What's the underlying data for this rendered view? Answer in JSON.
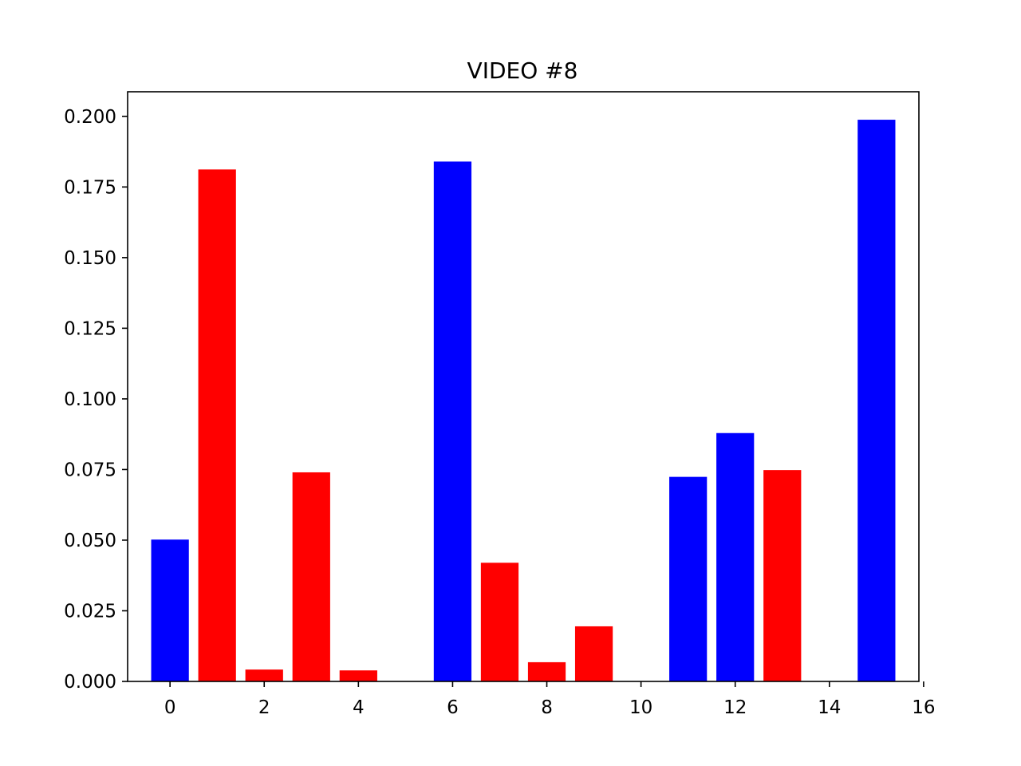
{
  "chart_data": {
    "type": "bar",
    "title": "VIDEO #8",
    "xlabel": "",
    "ylabel": "",
    "xlim": [
      -0.9,
      15.9
    ],
    "ylim": [
      0,
      0.2087
    ],
    "x_ticks": [
      0,
      2,
      4,
      6,
      8,
      10,
      12,
      14,
      16
    ],
    "x_tick_labels": [
      "0",
      "2",
      "4",
      "6",
      "8",
      "10",
      "12",
      "14",
      "16"
    ],
    "y_ticks": [
      0,
      0.025,
      0.05,
      0.075,
      0.1,
      0.125,
      0.15,
      0.175,
      0.2
    ],
    "y_tick_labels": [
      "0.000",
      "0.025",
      "0.050",
      "0.075",
      "0.100",
      "0.125",
      "0.150",
      "0.175",
      "0.200"
    ],
    "grid": false,
    "bar_width": 0.8,
    "colors": {
      "blue": "#0000ff",
      "red": "#ff0000"
    },
    "bars": [
      {
        "x": 0,
        "value": 0.0502,
        "color": "#0000ff"
      },
      {
        "x": 1,
        "value": 0.1812,
        "color": "#ff0000"
      },
      {
        "x": 2,
        "value": 0.0042,
        "color": "#ff0000"
      },
      {
        "x": 3,
        "value": 0.074,
        "color": "#ff0000"
      },
      {
        "x": 4,
        "value": 0.0039,
        "color": "#ff0000"
      },
      {
        "x": 6,
        "value": 0.184,
        "color": "#0000ff"
      },
      {
        "x": 7,
        "value": 0.042,
        "color": "#ff0000"
      },
      {
        "x": 8,
        "value": 0.0068,
        "color": "#ff0000"
      },
      {
        "x": 9,
        "value": 0.0195,
        "color": "#ff0000"
      },
      {
        "x": 11,
        "value": 0.0724,
        "color": "#0000ff"
      },
      {
        "x": 12,
        "value": 0.0879,
        "color": "#0000ff"
      },
      {
        "x": 13,
        "value": 0.0748,
        "color": "#ff0000"
      },
      {
        "x": 15,
        "value": 0.1988,
        "color": "#0000ff"
      }
    ]
  }
}
